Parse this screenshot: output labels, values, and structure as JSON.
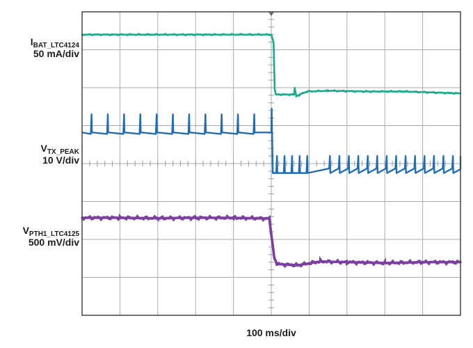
{
  "chart_data": {
    "type": "line",
    "title": "",
    "xlabel": "100 ms/div",
    "grid": true,
    "divisions": {
      "x": 10,
      "y": 8
    },
    "trigger_div": 5,
    "series": [
      {
        "name": "I",
        "sub": "BAT_LTC4124",
        "scale": "50 mA/div",
        "color": "#1aab8a",
        "x_div": [
          0,
          5.0,
          5.06,
          5.09,
          5.12,
          5.6,
          5.62,
          5.66,
          5.75,
          5.95,
          6.5,
          7.5,
          8.5,
          10
        ],
        "y_div": [
          7.4,
          7.4,
          7.2,
          5.98,
          5.82,
          5.82,
          6.0,
          5.77,
          5.82,
          5.9,
          5.92,
          5.9,
          5.9,
          5.85
        ]
      },
      {
        "name": "V",
        "sub": "TX_PEAK",
        "scale": "10 V/div",
        "color": "#1f6db5",
        "pre_base_div": 4.82,
        "pre_spike_div": 5.3,
        "pre_spike_x_div": [
          0.25,
          0.68,
          1.11,
          1.54,
          1.97,
          2.4,
          2.83,
          3.26,
          3.69,
          4.12,
          4.55
        ],
        "post_base_div": 3.75,
        "post_spike_div": 4.2,
        "post_spike_x_div": [
          5.15,
          5.35,
          5.55,
          5.75,
          5.95,
          6.55,
          6.8,
          7.05,
          7.3,
          7.55,
          7.8,
          8.05,
          8.3,
          8.55,
          8.8,
          9.05,
          9.3,
          9.55,
          9.8
        ]
      },
      {
        "name": "V",
        "sub": "PTH1_LTC4125",
        "scale": "500 mV/div",
        "color": "#7b3fa0",
        "x_div": [
          0,
          1,
          2,
          3,
          4,
          4.95,
          5.08,
          5.15,
          5.7,
          6.3,
          7,
          8,
          9,
          10
        ],
        "y_div": [
          2.57,
          2.57,
          2.56,
          2.57,
          2.57,
          2.55,
          1.5,
          1.35,
          1.32,
          1.42,
          1.4,
          1.38,
          1.4,
          1.4
        ]
      }
    ]
  }
}
